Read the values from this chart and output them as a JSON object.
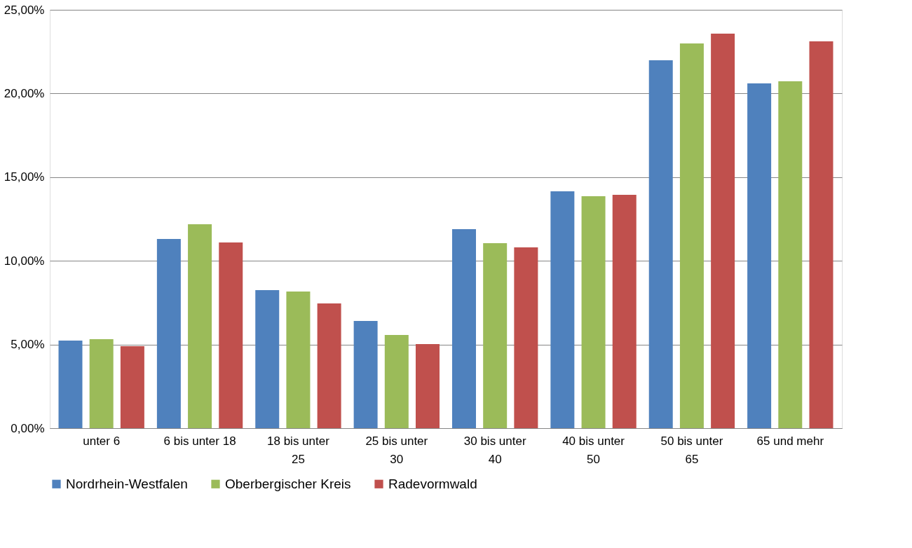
{
  "chart_data": {
    "type": "bar",
    "categories": [
      "unter 6",
      "6 bis unter 18",
      "18 bis unter 25",
      "25 bis unter 30",
      "30 bis unter 40",
      "40 bis unter 50",
      "50 bis unter 65",
      "65 und mehr"
    ],
    "series": [
      {
        "name": "Nordrhein-Westfalen",
        "color": "#4f81bd",
        "values": [
          5.23,
          11.31,
          8.25,
          6.41,
          11.89,
          14.15,
          21.98,
          20.6
        ]
      },
      {
        "name": "Oberbergischer Kreis",
        "color": "#9bbb59",
        "values": [
          5.32,
          12.19,
          8.17,
          5.57,
          11.06,
          13.86,
          22.99,
          20.73
        ]
      },
      {
        "name": "Radevormwald",
        "color": "#c0504d",
        "values": [
          4.9,
          11.1,
          7.45,
          5.03,
          10.8,
          13.94,
          23.58,
          23.12
        ]
      }
    ],
    "ylim": [
      0,
      25
    ],
    "yticks": [
      {
        "value": 0,
        "label": "0,00%"
      },
      {
        "value": 5,
        "label": "5,00%"
      },
      {
        "value": 10,
        "label": "10,00%"
      },
      {
        "value": 15,
        "label": "15,00%"
      },
      {
        "value": 20,
        "label": "20,00%"
      },
      {
        "value": 25,
        "label": "25,00%"
      }
    ],
    "grid": "y",
    "legend": "bottom"
  }
}
